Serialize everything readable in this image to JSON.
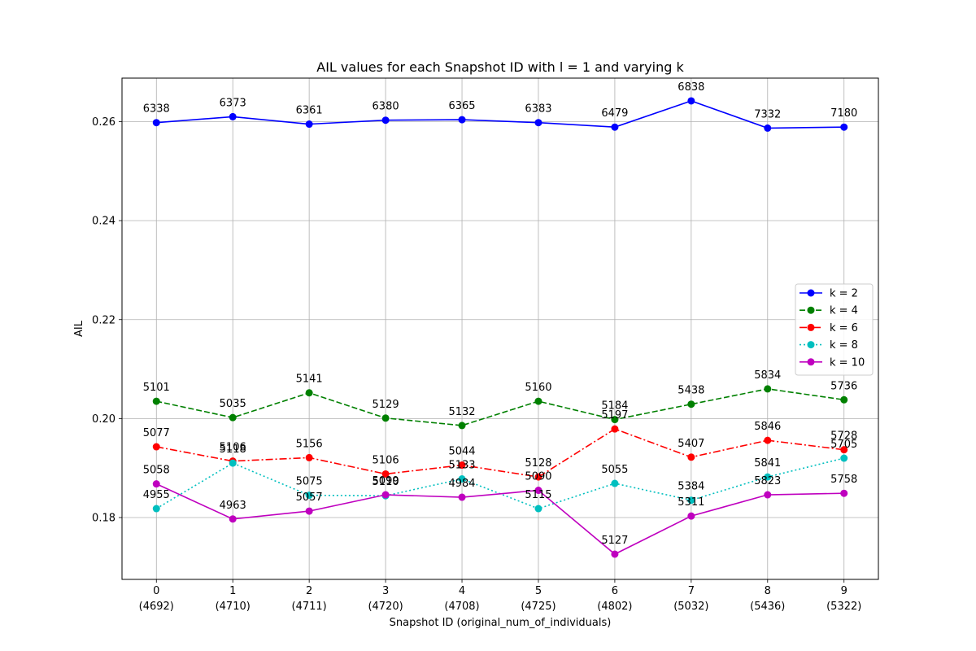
{
  "chart_data": {
    "type": "line",
    "title": "AIL values for each Snapshot ID with l = 1 and varying k",
    "xlabel": "Snapshot ID (original_num_of_individuals)",
    "ylabel": "AIL",
    "x": [
      0,
      1,
      2,
      3,
      4,
      5,
      6,
      7,
      8,
      9
    ],
    "x_tick_labels": [
      "0",
      "1",
      "2",
      "3",
      "4",
      "5",
      "6",
      "7",
      "8",
      "9"
    ],
    "x_tick_sublabels": [
      "(4692)",
      "(4710)",
      "(4711)",
      "(4720)",
      "(4708)",
      "(4725)",
      "(4802)",
      "(5032)",
      "(5436)",
      "(5322)"
    ],
    "y_ticks": [
      0.18,
      0.2,
      0.22,
      0.24,
      0.26
    ],
    "y_tick_labels": [
      "0.18",
      "0.20",
      "0.22",
      "0.24",
      "0.26"
    ],
    "xlim": [
      -0.45,
      9.45
    ],
    "ylim": [
      0.1675,
      0.2688
    ],
    "grid": true,
    "legend_position": "center-right",
    "series": [
      {
        "name": "k = 2",
        "color": "#0000ff",
        "linestyle": "solid",
        "values": [
          0.2598,
          0.261,
          0.2595,
          0.2603,
          0.2604,
          0.2598,
          0.2589,
          0.2642,
          0.2587,
          0.2589
        ],
        "annotations": [
          "6338",
          "6373",
          "6361",
          "6380",
          "6365",
          "6383",
          "6479",
          "6838",
          "7332",
          "7180"
        ]
      },
      {
        "name": "k = 4",
        "color": "#008000",
        "linestyle": "dashed",
        "values": [
          0.2035,
          0.2002,
          0.2052,
          0.2001,
          0.1986,
          0.2035,
          0.1998,
          0.2029,
          0.206,
          0.2038
        ],
        "annotations": [
          "5101",
          "5035",
          "5141",
          "5129",
          "5132",
          "5160",
          "5184",
          "5438",
          "5834",
          "5736"
        ]
      },
      {
        "name": "k = 6",
        "color": "#ff0000",
        "linestyle": "dashdot",
        "values": [
          0.1943,
          0.1914,
          0.1921,
          0.1888,
          0.1906,
          0.1882,
          0.1979,
          0.1922,
          0.1956,
          0.1937
        ],
        "annotations": [
          "5077",
          "5106",
          "5156",
          "5106",
          "5044",
          "5128",
          "5197",
          "5407",
          "5846",
          "5728"
        ]
      },
      {
        "name": "k = 8",
        "color": "#00bfbf",
        "linestyle": "dotted",
        "values": [
          0.1818,
          0.191,
          0.1845,
          0.1844,
          0.1878,
          0.1818,
          0.1869,
          0.1835,
          0.1882,
          0.192
        ],
        "annotations": [
          "4955",
          "5118",
          "5075",
          "5110",
          "5133",
          "5115",
          "5055",
          "5384",
          "5841",
          "5705"
        ]
      },
      {
        "name": "k = 10",
        "color": "#bf00bf",
        "linestyle": "solid",
        "values": [
          0.1868,
          0.1797,
          0.1813,
          0.1846,
          0.1841,
          0.1855,
          0.1726,
          0.1803,
          0.1846,
          0.1849
        ],
        "annotations": [
          "5058",
          "4963",
          "5057",
          "5099",
          "4984",
          "5090",
          "5127",
          "5311",
          "5823",
          "5758"
        ]
      }
    ]
  }
}
